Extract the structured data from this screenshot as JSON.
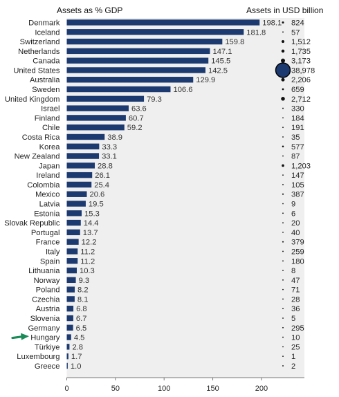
{
  "chart_data": {
    "type": "bar",
    "orientation": "horizontal",
    "title": "Assets as % GDP",
    "secondary_title": "Assets in USD billion",
    "categories": [
      "Denmark",
      "Iceland",
      "Switzerland",
      "Netherlands",
      "Canada",
      "United States",
      "Australia",
      "Sweden",
      "United Kingdom",
      "Israel",
      "Finland",
      "Chile",
      "Costa Rica",
      "Korea",
      "New Zealand",
      "Japan",
      "Ireland",
      "Colombia",
      "Mexico",
      "Latvia",
      "Estonia",
      "Slovak Republic",
      "Portugal",
      "France",
      "Italy",
      "Spain",
      "Lithuania",
      "Norway",
      "Poland",
      "Czechia",
      "Austria",
      "Slovenia",
      "Germany",
      "Hungary",
      "Türkiye",
      "Luxembourg",
      "Greece"
    ],
    "values": [
      198.1,
      181.8,
      159.8,
      147.1,
      145.5,
      142.5,
      129.9,
      106.6,
      79.3,
      63.6,
      60.7,
      59.2,
      38.9,
      33.3,
      33.1,
      28.8,
      26.1,
      25.4,
      20.6,
      19.5,
      15.3,
      14.4,
      13.7,
      12.2,
      11.2,
      11.2,
      10.3,
      9.3,
      8.2,
      8.1,
      6.8,
      6.7,
      6.5,
      4.5,
      2.8,
      1.7,
      1.0
    ],
    "value_labels": [
      "198.1",
      "181.8",
      "159.8",
      "147.1",
      "145.5",
      "142.5",
      "129.9",
      "106.6",
      "79.3",
      "63.6",
      "60.7",
      "59.2",
      "38.9",
      "33.3",
      "33.1",
      "28.8",
      "26.1",
      "25.4",
      "20.6",
      "19.5",
      "15.3",
      "14.4",
      "13.7",
      "12.2",
      "11.2",
      "11.2",
      "10.3",
      "9.3",
      "8.2",
      "8.1",
      "6.8",
      "6.7",
      "6.5",
      "4.5",
      "2.8",
      "1.7",
      "1.0"
    ],
    "assets_usd_billion": [
      824,
      57,
      1512,
      1735,
      3173,
      38978,
      2206,
      659,
      2712,
      330,
      184,
      191,
      35,
      577,
      87,
      1203,
      147,
      105,
      387,
      9,
      6,
      20,
      40,
      379,
      259,
      180,
      8,
      47,
      71,
      28,
      36,
      5,
      295,
      10,
      25,
      1,
      2
    ],
    "assets_labels": [
      "824",
      "57",
      "1,512",
      "1,735",
      "3,173",
      "38,978",
      "2,206",
      "659",
      "2,712",
      "330",
      "184",
      "191",
      "35",
      "577",
      "87",
      "1,203",
      "147",
      "105",
      "387",
      "9",
      "6",
      "20",
      "40",
      "379",
      "259",
      "180",
      "8",
      "47",
      "71",
      "28",
      "36",
      "5",
      "295",
      "10",
      "25",
      "1",
      "2"
    ],
    "x_ticks": [
      "0",
      "50",
      "100",
      "150",
      "200"
    ],
    "xlim": [
      0,
      245
    ],
    "highlight": "Hungary",
    "grid": false,
    "colors": {
      "bar": "#1c3a70",
      "plot_bg": "#efefef",
      "bubble": "#111111",
      "bubble_large": "#1c3a70",
      "arrow": "#1a8a57"
    }
  }
}
